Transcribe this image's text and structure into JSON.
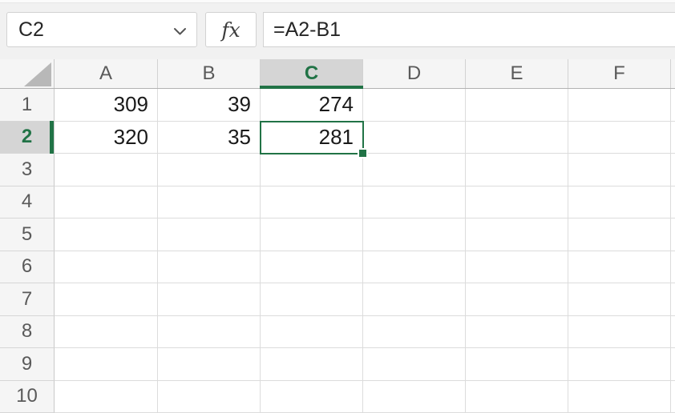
{
  "name_box": {
    "value": "C2"
  },
  "formula_bar": {
    "fx_label": "fx",
    "formula": "=A2-B1"
  },
  "selection": {
    "active_cell": "C2",
    "column": "C",
    "row": "2"
  },
  "colors": {
    "accent_green": "#217346",
    "selected_header_bg": "#d5d5d5",
    "header_bg": "#f5f5f5",
    "gridline": "#dcdcdc"
  },
  "grid": {
    "columns": [
      "A",
      "B",
      "C",
      "D",
      "E",
      "F"
    ],
    "rows": [
      {
        "label": "1",
        "cells": [
          "309",
          "39",
          "274",
          "",
          "",
          ""
        ]
      },
      {
        "label": "2",
        "cells": [
          "320",
          "35",
          "281",
          "",
          "",
          ""
        ]
      },
      {
        "label": "3",
        "cells": [
          "",
          "",
          "",
          "",
          "",
          ""
        ]
      },
      {
        "label": "4",
        "cells": [
          "",
          "",
          "",
          "",
          "",
          ""
        ]
      },
      {
        "label": "5",
        "cells": [
          "",
          "",
          "",
          "",
          "",
          ""
        ]
      },
      {
        "label": "6",
        "cells": [
          "",
          "",
          "",
          "",
          "",
          ""
        ]
      },
      {
        "label": "7",
        "cells": [
          "",
          "",
          "",
          "",
          "",
          ""
        ]
      },
      {
        "label": "8",
        "cells": [
          "",
          "",
          "",
          "",
          "",
          ""
        ]
      },
      {
        "label": "9",
        "cells": [
          "",
          "",
          "",
          "",
          "",
          ""
        ]
      },
      {
        "label": "10",
        "cells": [
          "",
          "",
          "",
          "",
          "",
          ""
        ]
      }
    ]
  }
}
